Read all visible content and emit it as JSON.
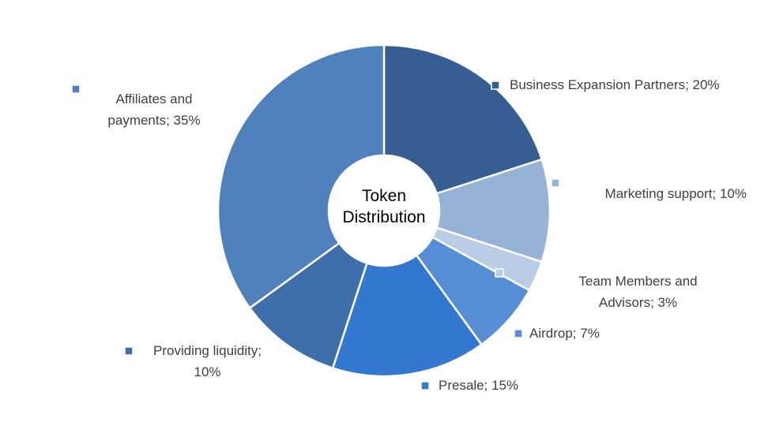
{
  "chart_data": {
    "type": "donut",
    "title": "Token Distribution",
    "values": [
      20,
      10,
      3,
      7,
      15,
      10,
      35
    ],
    "value_labels": [
      "Business Expansion Partners; 20%",
      "Marketing support; 10%",
      "Team Members and Advisors; 3%",
      "Airdrop; 7%",
      "Presale; 15%",
      "Providing liquidity; 10%",
      "Affiliates and payments; 35%"
    ],
    "colors": [
      "#375e93",
      "#95b3d7",
      "#b9cde5",
      "#558ed5",
      "#3378d0",
      "#3f6fab",
      "#4f81bd"
    ]
  }
}
